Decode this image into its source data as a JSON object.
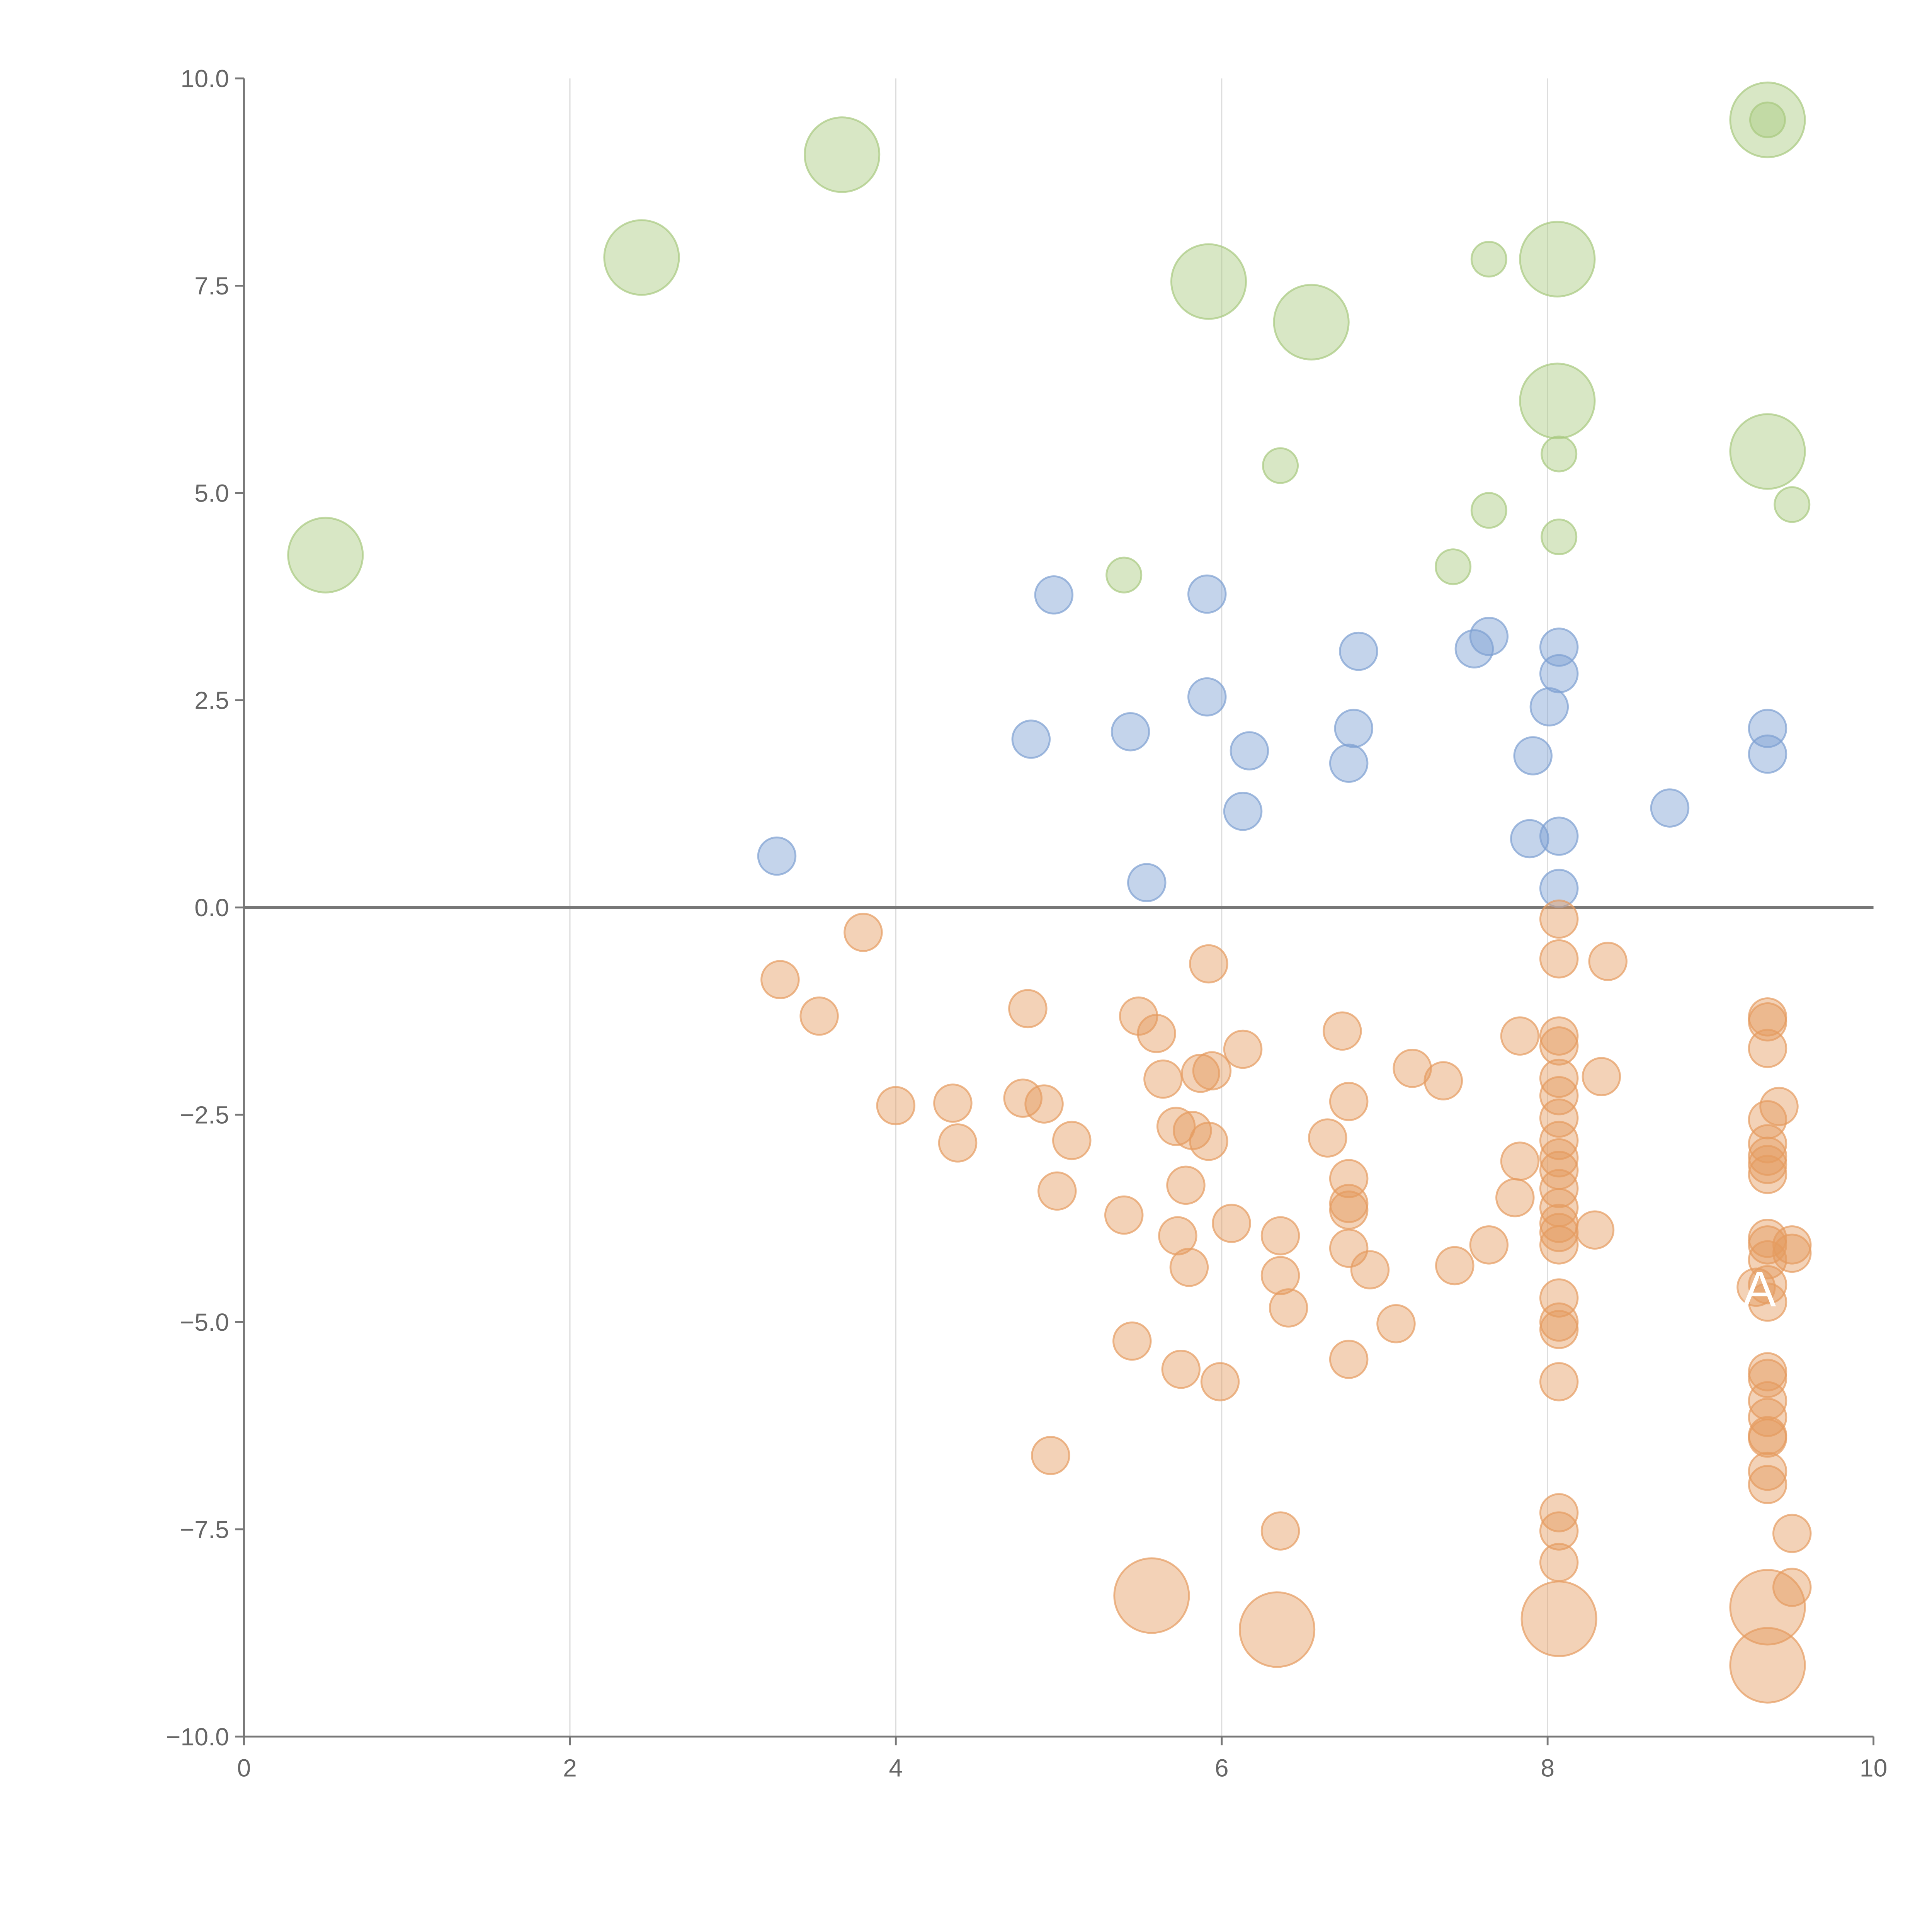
{
  "chart_data": {
    "type": "scatter",
    "title": "",
    "xlabel": "",
    "ylabel": "",
    "xlim": [
      0,
      10
    ],
    "ylim": [
      -10,
      10
    ],
    "grid": "vertical",
    "x_ticks": [
      "0",
      "2",
      "4",
      "6",
      "8",
      "10"
    ],
    "x_tick_values": [
      0,
      2,
      4,
      6,
      8,
      10
    ],
    "y_ticks": [
      "10.0",
      "7.5",
      "5.0",
      "2.5",
      "0.0",
      "−2.5",
      "−5.0",
      "−7.5",
      "−10.0"
    ],
    "y_tick_values": [
      10,
      7.5,
      5,
      2.5,
      0,
      -2.5,
      -5,
      -7.5,
      -10
    ],
    "reference_line_y": 0,
    "annotation": {
      "text": "A",
      "x": 9.3,
      "y": -4.6
    },
    "colors": {
      "green": "#a8c97f",
      "blue": "#7da0d2",
      "orange": "#e59b60",
      "axis": "#777777",
      "grid": "#dddddd"
    },
    "series": [
      {
        "name": "green",
        "points": [
          [
            0.5,
            4.25,
            3
          ],
          [
            2.44,
            7.84,
            3
          ],
          [
            3.67,
            9.08,
            3
          ],
          [
            5.92,
            7.55,
            3
          ],
          [
            6.55,
            7.06,
            3
          ],
          [
            8.06,
            7.82,
            3
          ],
          [
            8.06,
            6.11,
            3
          ],
          [
            9.35,
            9.5,
            3
          ],
          [
            9.35,
            9.5,
            1
          ],
          [
            9.35,
            5.5,
            3
          ],
          [
            7.64,
            7.82,
            1
          ],
          [
            6.36,
            5.33,
            1
          ],
          [
            8.07,
            5.47,
            1
          ],
          [
            7.64,
            4.79,
            1
          ],
          [
            9.5,
            4.86,
            1
          ],
          [
            8.07,
            4.47,
            1
          ],
          [
            5.4,
            4.01,
            1
          ],
          [
            7.42,
            4.11,
            1
          ]
        ]
      },
      {
        "name": "blue",
        "points": [
          [
            4.97,
            3.77,
            1.1
          ],
          [
            5.91,
            3.78,
            1.1
          ],
          [
            6.84,
            3.09,
            1.1
          ],
          [
            7.55,
            3.12,
            1.1
          ],
          [
            7.64,
            3.27,
            1.1
          ],
          [
            8.07,
            3.14,
            1.1
          ],
          [
            8.07,
            2.82,
            1.1
          ],
          [
            5.91,
            2.54,
            1.1
          ],
          [
            5.44,
            2.12,
            1.1
          ],
          [
            4.83,
            2.03,
            1.1
          ],
          [
            6.81,
            2.16,
            1.1
          ],
          [
            6.17,
            1.89,
            1.1
          ],
          [
            6.78,
            1.74,
            1.1
          ],
          [
            8.01,
            2.42,
            1.1
          ],
          [
            7.91,
            1.83,
            1.1
          ],
          [
            9.35,
            2.16,
            1.1
          ],
          [
            9.35,
            1.85,
            1.1
          ],
          [
            8.75,
            1.2,
            1.1
          ],
          [
            6.13,
            1.16,
            1.1
          ],
          [
            7.89,
            0.83,
            1.1
          ],
          [
            8.07,
            0.86,
            1.1
          ],
          [
            3.27,
            0.62,
            1.1
          ],
          [
            5.54,
            0.3,
            1.1
          ],
          [
            8.07,
            0.23,
            1.1
          ]
        ]
      },
      {
        "name": "orange",
        "points": [
          [
            3.8,
            -0.3,
            1.1
          ],
          [
            3.29,
            -0.87,
            1.1
          ],
          [
            3.53,
            -1.31,
            1.1
          ],
          [
            4.81,
            -1.22,
            1.1
          ],
          [
            5.92,
            -0.68,
            1.1
          ],
          [
            8.07,
            -0.14,
            1.1
          ],
          [
            8.07,
            -0.62,
            1.1
          ],
          [
            8.37,
            -0.65,
            1.1
          ],
          [
            5.49,
            -1.31,
            1.1
          ],
          [
            5.6,
            -1.52,
            1.1
          ],
          [
            6.13,
            -1.71,
            1.1
          ],
          [
            5.64,
            -2.07,
            1.1
          ],
          [
            5.87,
            -2.0,
            1.1
          ],
          [
            5.94,
            -1.97,
            1.1
          ],
          [
            6.74,
            -1.49,
            1.1
          ],
          [
            7.17,
            -1.94,
            1.1
          ],
          [
            7.36,
            -2.09,
            1.1
          ],
          [
            7.83,
            -1.55,
            1.1
          ],
          [
            8.07,
            -1.55,
            1.1
          ],
          [
            8.07,
            -1.67,
            1.1
          ],
          [
            8.07,
            -2.06,
            1.1
          ],
          [
            8.07,
            -2.27,
            1.1
          ],
          [
            8.33,
            -2.04,
            1.1
          ],
          [
            8.07,
            -2.54,
            1.1
          ],
          [
            8.07,
            -2.81,
            1.1
          ],
          [
            8.07,
            -3.02,
            1.1
          ],
          [
            8.07,
            -3.17,
            1.1
          ],
          [
            8.07,
            -3.39,
            1.1
          ],
          [
            8.07,
            -3.62,
            1.1
          ],
          [
            8.07,
            -3.81,
            1.1
          ],
          [
            8.07,
            -3.92,
            1.1
          ],
          [
            8.07,
            -4.07,
            1.1
          ],
          [
            8.07,
            -4.71,
            1.1
          ],
          [
            8.07,
            -5.0,
            1.1
          ],
          [
            8.07,
            -5.09,
            1.1
          ],
          [
            8.07,
            -5.72,
            1.1
          ],
          [
            8.07,
            -7.3,
            1.1
          ],
          [
            8.07,
            -7.52,
            1.1
          ],
          [
            8.07,
            -7.9,
            1.1
          ],
          [
            7.83,
            -3.06,
            1.1
          ],
          [
            7.8,
            -3.5,
            1.1
          ],
          [
            8.29,
            -3.89,
            1.1
          ],
          [
            7.64,
            -4.07,
            1.1
          ],
          [
            7.43,
            -4.32,
            1.1
          ],
          [
            4.0,
            -2.39,
            1.1
          ],
          [
            4.35,
            -2.36,
            1.1
          ],
          [
            4.38,
            -2.84,
            1.1
          ],
          [
            4.78,
            -2.3,
            1.1
          ],
          [
            4.91,
            -2.37,
            1.1
          ],
          [
            5.08,
            -2.81,
            1.1
          ],
          [
            4.99,
            -3.42,
            1.1
          ],
          [
            5.4,
            -3.71,
            1.1
          ],
          [
            5.72,
            -2.64,
            1.1
          ],
          [
            5.82,
            -2.69,
            1.1
          ],
          [
            5.92,
            -2.82,
            1.1
          ],
          [
            5.78,
            -3.35,
            1.1
          ],
          [
            5.73,
            -3.96,
            1.1
          ],
          [
            5.8,
            -4.34,
            1.1
          ],
          [
            6.06,
            -3.81,
            1.1
          ],
          [
            6.36,
            -3.96,
            1.1
          ],
          [
            6.36,
            -4.44,
            1.1
          ],
          [
            6.41,
            -4.83,
            1.1
          ],
          [
            6.65,
            -2.78,
            1.1
          ],
          [
            6.78,
            -2.34,
            1.1
          ],
          [
            6.78,
            -3.27,
            1.1
          ],
          [
            6.78,
            -3.57,
            1.1
          ],
          [
            6.78,
            -3.65,
            1.1
          ],
          [
            6.78,
            -4.11,
            1.1
          ],
          [
            6.91,
            -4.37,
            1.1
          ],
          [
            7.07,
            -5.02,
            1.1
          ],
          [
            6.78,
            -5.45,
            1.1
          ],
          [
            5.45,
            -5.23,
            1.1
          ],
          [
            5.75,
            -5.57,
            1.1
          ],
          [
            5.99,
            -5.72,
            1.1
          ],
          [
            4.95,
            -6.61,
            1.1
          ],
          [
            6.36,
            -7.52,
            1.1
          ],
          [
            9.35,
            -1.32,
            1.1
          ],
          [
            9.35,
            -1.38,
            1.1
          ],
          [
            9.35,
            -1.7,
            1.1
          ],
          [
            9.42,
            -2.4,
            1.1
          ],
          [
            9.35,
            -2.56,
            1.1
          ],
          [
            9.35,
            -2.85,
            1.1
          ],
          [
            9.35,
            -3.0,
            1.1
          ],
          [
            9.35,
            -3.1,
            1.1
          ],
          [
            9.35,
            -3.22,
            1.1
          ],
          [
            9.35,
            -3.99,
            1.1
          ],
          [
            9.35,
            -4.07,
            1.1
          ],
          [
            9.35,
            -4.25,
            1.1
          ],
          [
            9.28,
            -4.58,
            1.1
          ],
          [
            9.35,
            -4.55,
            1.1
          ],
          [
            9.35,
            -4.76,
            1.1
          ],
          [
            9.35,
            -5.6,
            1.1
          ],
          [
            9.35,
            -5.68,
            1.1
          ],
          [
            9.35,
            -5.95,
            1.1
          ],
          [
            9.35,
            -6.15,
            1.1
          ],
          [
            9.35,
            -6.37,
            1.1
          ],
          [
            9.35,
            -6.4,
            1.1
          ],
          [
            9.35,
            -6.8,
            1.1
          ],
          [
            9.35,
            -6.96,
            1.1
          ],
          [
            9.5,
            -7.55,
            1.1
          ],
          [
            9.5,
            -8.2,
            1.1
          ],
          [
            9.5,
            -4.07,
            1.1
          ],
          [
            9.5,
            -4.17,
            1.1
          ],
          [
            5.57,
            -8.3,
            3
          ],
          [
            6.34,
            -8.71,
            3
          ],
          [
            8.07,
            -8.58,
            3
          ],
          [
            9.35,
            -8.44,
            3
          ],
          [
            9.35,
            -9.14,
            3
          ]
        ]
      }
    ]
  }
}
